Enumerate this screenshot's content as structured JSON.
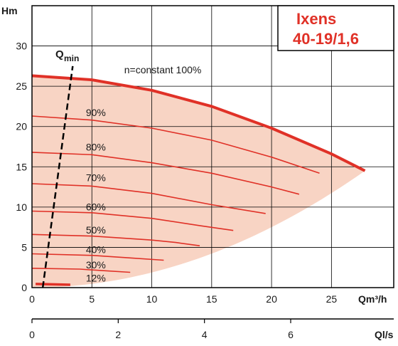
{
  "chart_data": {
    "type": "line",
    "title_lines": [
      "Ixens",
      "40-19/1,6"
    ],
    "ylabel": "Hm",
    "xlabel": "Qm³/h",
    "xlabel2": "Ql/s",
    "xlim": [
      0,
      30.2
    ],
    "ylim": [
      0,
      35
    ],
    "xticks": [
      0,
      5,
      10,
      15,
      20,
      25
    ],
    "yticks": [
      0,
      5,
      10,
      15,
      20,
      25,
      30
    ],
    "x2lim": [
      0,
      8.39
    ],
    "x2ticks": [
      0,
      2,
      4,
      6
    ],
    "grid": true,
    "colors": {
      "curve": "#e03127",
      "envelope": "#f8d4c4",
      "frame": "#000000",
      "grid": "#000000"
    },
    "qmin": {
      "label": "Q",
      "label_sub": "min",
      "points": [
        [
          0.9,
          0
        ],
        [
          3.4,
          27.5
        ]
      ]
    },
    "envelope_max_curve_end_x": 27.8,
    "series": [
      {
        "name": "n=constant 100%",
        "label": "n=constant 100%",
        "points": [
          [
            0,
            26.3
          ],
          [
            5,
            25.8
          ],
          [
            10,
            24.5
          ],
          [
            15,
            22.5
          ],
          [
            20,
            19.8
          ],
          [
            25,
            16.6
          ],
          [
            27.8,
            14.5
          ]
        ]
      },
      {
        "name": "90%",
        "label": "90%",
        "points": [
          [
            0,
            21.3
          ],
          [
            5,
            20.8
          ],
          [
            10,
            19.8
          ],
          [
            15,
            18.3
          ],
          [
            20,
            16.2
          ],
          [
            24,
            14.2
          ]
        ]
      },
      {
        "name": "80%",
        "label": "80%",
        "points": [
          [
            0,
            16.8
          ],
          [
            5,
            16.5
          ],
          [
            10,
            15.5
          ],
          [
            15,
            14.2
          ],
          [
            20,
            12.5
          ],
          [
            22.3,
            11.6
          ]
        ]
      },
      {
        "name": "70%",
        "label": "70%",
        "points": [
          [
            0,
            12.9
          ],
          [
            5,
            12.6
          ],
          [
            10,
            11.7
          ],
          [
            15,
            10.3
          ],
          [
            19.5,
            9.2
          ]
        ]
      },
      {
        "name": "60%",
        "label": "60%",
        "points": [
          [
            0,
            9.5
          ],
          [
            5,
            9.3
          ],
          [
            10,
            8.6
          ],
          [
            14,
            7.7
          ],
          [
            16.8,
            7.1
          ]
        ]
      },
      {
        "name": "50%",
        "label": "50%",
        "points": [
          [
            0,
            6.6
          ],
          [
            5,
            6.4
          ],
          [
            10,
            5.9
          ],
          [
            12,
            5.6
          ],
          [
            14,
            5.2
          ]
        ]
      },
      {
        "name": "40%",
        "label": "40%",
        "points": [
          [
            0,
            4.2
          ],
          [
            5,
            4.0
          ],
          [
            8,
            3.7
          ],
          [
            11,
            3.4
          ]
        ]
      },
      {
        "name": "30%",
        "label": "30%",
        "points": [
          [
            0,
            2.4
          ],
          [
            4,
            2.3
          ],
          [
            6,
            2.1
          ],
          [
            8.2,
            1.9
          ]
        ]
      },
      {
        "name": "12%",
        "label": "12%",
        "points": [
          [
            0.3,
            0.45
          ],
          [
            2,
            0.4
          ],
          [
            3.2,
            0.35
          ]
        ]
      }
    ]
  }
}
